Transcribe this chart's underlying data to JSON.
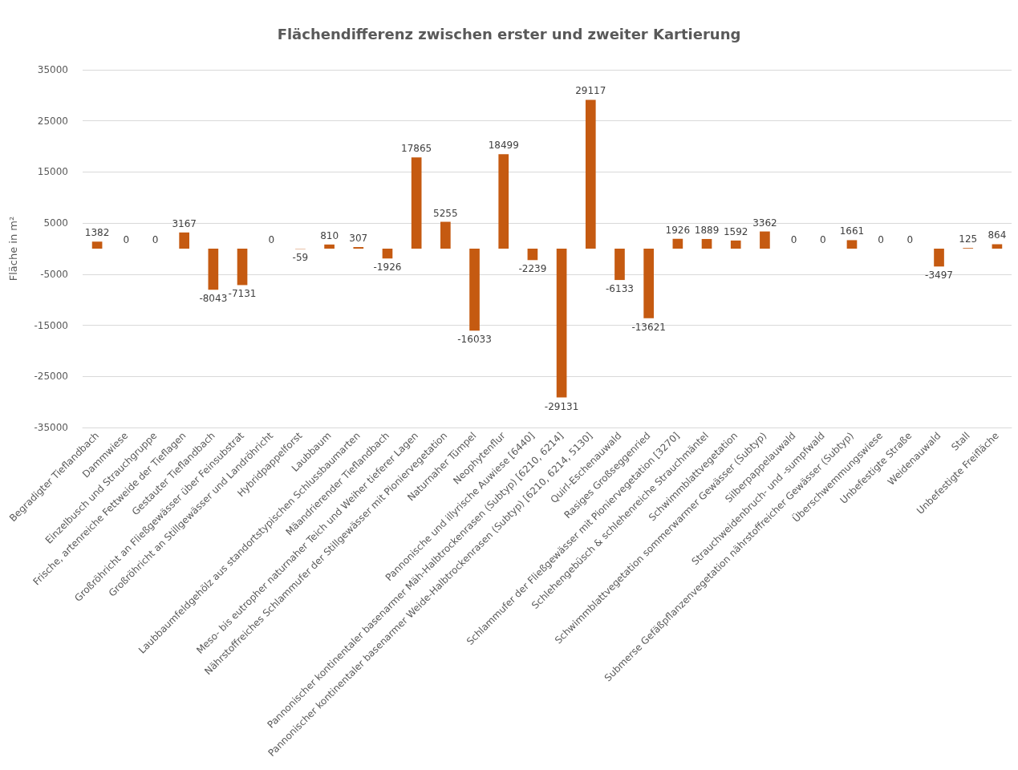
{
  "chart_data": {
    "type": "bar",
    "title": "Flächendifferenz zwischen erster und zweiter Kartierung",
    "ylabel": "Fläche in m²",
    "categories": [
      "Begradigter Tieflandbach",
      "Dammwiese",
      "Einzelbusch und Strauchgruppe",
      "Frische, artenreiche Fettweide der Tieflagen",
      "Gestauter Tieflandbach",
      "Großröhricht an Fließgewässer über Feinsubstrat",
      "Großröhricht an Stillgewässer und Landröhricht",
      "Hybridpappelforst",
      "Laubbaum",
      "Laubbaumfeldgehölz aus standortstypischen Schlussbaumarten",
      "Mäandrierender Tieflandbach",
      "Meso- bis eutropher naturnaher Teich und Weiher tieferer Lagen",
      "Nährstoffreiches Schlammufer der Stillgewässer mit Pioniervegetation",
      "Naturnaher Tümpel",
      "Neophytenflur",
      "Pannonische und illyrische Auwiese [6440]",
      "Pannonischer kontinentaler basenarmer Mäh-Halbtrockenrasen (Subtyp) [6210, 6214]",
      "Pannonischer kontinentaler basenarmer Weide-Halbtrockenrasen (Subtyp) [6210, 6214, 5130]",
      "Quirl-Eschenauwald",
      "Rasiges Großseggenried",
      "Schlammufer der Fließgewässer mit Pioniervegetation [3270]",
      "Schlehengebüsch & schlehenreiche Strauchmäntel",
      "Schwimmblattvegetation",
      "Schwimmblattvegetation sommerwarmer Gewässer (Subtyp)",
      "Silberpappelauwald",
      "Strauchweidenbruch- und -sumpfwald",
      "Submerse Gefäßpflanzenvegetation nährstoffreicher Gewässer (Subtyp)",
      "Überschwemmungswiese",
      "Unbefestigte Straße",
      "Weidenauwald",
      "Stall",
      "Unbefestigte Freifläche"
    ],
    "values": [
      1382,
      0,
      0,
      3167,
      -8043,
      -7131,
      0,
      -59,
      810,
      307,
      -1926,
      17865,
      5255,
      -16033,
      18499,
      -2239,
      -29131,
      29117,
      -6133,
      -13621,
      1926,
      1889,
      1592,
      3362,
      0,
      0,
      1661,
      0,
      0,
      -3497,
      125,
      864
    ],
    "color": "#c55a11",
    "ylim": [
      -35000,
      35000
    ],
    "yticks": [
      -35000,
      -25000,
      -15000,
      -5000,
      5000,
      15000,
      25000,
      35000
    ],
    "grid": "y",
    "data_labels": true
  }
}
